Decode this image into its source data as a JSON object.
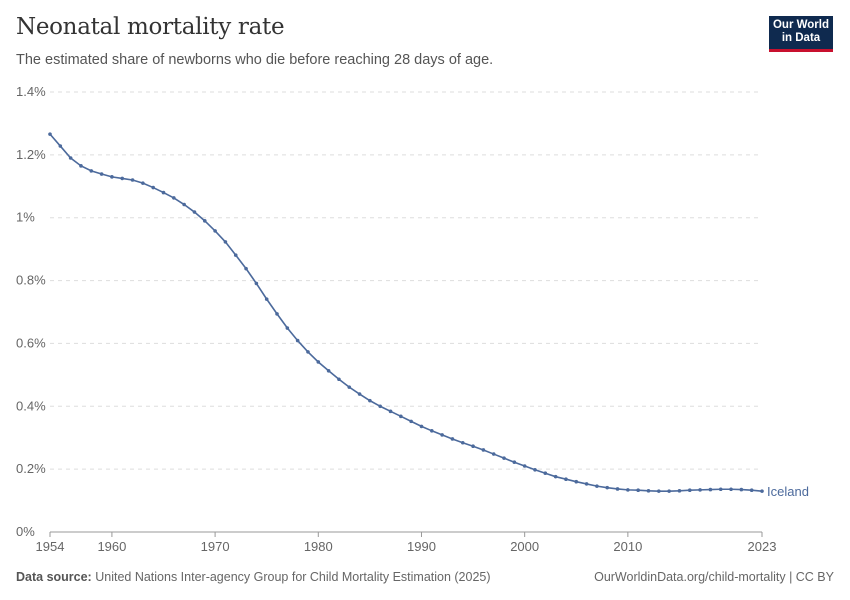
{
  "header": {
    "title": "Neonatal mortality rate",
    "subtitle": "The estimated share of newborns who die before reaching 28 days of age.",
    "logo": "Our World in Data"
  },
  "footer": {
    "source_label": "Data source:",
    "source": "United Nations Inter-agency Group for Child Mortality Estimation (2025)",
    "link": "OurWorldinData.org/child-mortality | CC BY"
  },
  "chart_data": {
    "type": "line",
    "title": "Neonatal mortality rate",
    "xlabel": "",
    "ylabel": "",
    "xlim": [
      1954,
      2023
    ],
    "ylim": [
      0,
      1.4
    ],
    "grid": "horizontal dashed",
    "legend": "inline-right",
    "x_ticks": [
      "1954",
      "1960",
      "1970",
      "1980",
      "1990",
      "2000",
      "2010",
      "2023"
    ],
    "y_ticks": [
      "0%",
      "0.2%",
      "0.4%",
      "0.6%",
      "0.8%",
      "1%",
      "1.2%",
      "1.4%"
    ],
    "series": [
      {
        "name": "Iceland",
        "color": "#4c6a9c",
        "x_start": 1954,
        "values": [
          1.266,
          1.228,
          1.19,
          1.165,
          1.149,
          1.139,
          1.13,
          1.125,
          1.12,
          1.11,
          1.096,
          1.08,
          1.063,
          1.042,
          1.018,
          0.99,
          0.958,
          0.923,
          0.881,
          0.838,
          0.791,
          0.741,
          0.694,
          0.649,
          0.609,
          0.573,
          0.541,
          0.513,
          0.486,
          0.461,
          0.439,
          0.418,
          0.4,
          0.384,
          0.368,
          0.352,
          0.336,
          0.322,
          0.309,
          0.296,
          0.284,
          0.273,
          0.261,
          0.248,
          0.235,
          0.222,
          0.21,
          0.198,
          0.187,
          0.176,
          0.168,
          0.16,
          0.153,
          0.146,
          0.141,
          0.137,
          0.134,
          0.133,
          0.131,
          0.13,
          0.13,
          0.131,
          0.133,
          0.134,
          0.135,
          0.136,
          0.136,
          0.135,
          0.133,
          0.13
        ]
      }
    ]
  }
}
